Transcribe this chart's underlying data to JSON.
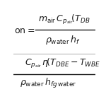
{
  "background_color": "#ffffff",
  "text_color": "#1a1a1a",
  "fontsize": 9
}
